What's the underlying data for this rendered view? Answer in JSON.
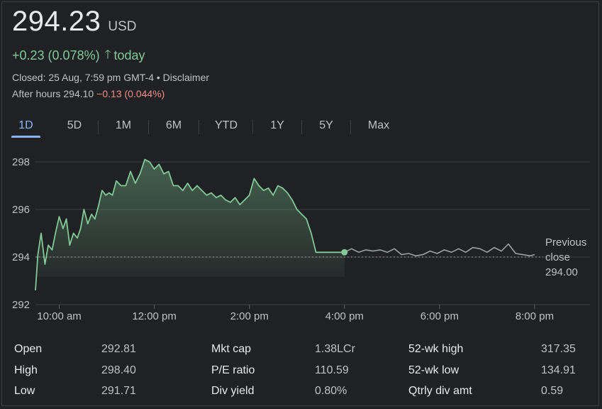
{
  "quote": {
    "price": "294.23",
    "currency": "USD",
    "change": "+0.23 (0.078%)",
    "period": "today",
    "closed_text": "Closed: 25 Aug, 7:59 pm GMT-4 • Disclaimer",
    "after_hours_label": "After hours 294.10",
    "after_hours_change": "−0.13 (0.044%)"
  },
  "tabs": [
    {
      "label": "1D",
      "active": true
    },
    {
      "label": "5D"
    },
    {
      "label": "1M"
    },
    {
      "label": "6M"
    },
    {
      "label": "YTD"
    },
    {
      "label": "1Y"
    },
    {
      "label": "5Y"
    },
    {
      "label": "Max"
    }
  ],
  "colors": {
    "up": "#81c995",
    "down": "#f28b82",
    "accent": "#8ab4f8",
    "after_hours_line": "#9aa0a6"
  },
  "chart_data": {
    "type": "line",
    "yticks": [
      "298",
      "296",
      "294",
      "292"
    ],
    "xticks": [
      "10:00 am",
      "12:00 pm",
      "2:00 pm",
      "4:00 pm",
      "6:00 pm",
      "8:00 pm"
    ],
    "ylim": [
      292,
      298.6
    ],
    "previous_close": 294.0,
    "previous_close_label": [
      "Previous",
      "close",
      "294.00"
    ],
    "x_unit": "hours",
    "x_range": [
      9.5,
      20.0
    ],
    "series": [
      {
        "session": "regular",
        "x": [
          9.5,
          9.55,
          9.62,
          9.7,
          9.77,
          9.85,
          9.92,
          10.0,
          10.08,
          10.15,
          10.22,
          10.3,
          10.38,
          10.45,
          10.52,
          10.6,
          10.68,
          10.75,
          10.82,
          10.9,
          10.98,
          11.05,
          11.12,
          11.2,
          11.3,
          11.4,
          11.5,
          11.6,
          11.7,
          11.8,
          11.9,
          12.0,
          12.1,
          12.2,
          12.3,
          12.4,
          12.5,
          12.6,
          12.7,
          12.8,
          12.9,
          13.0,
          13.1,
          13.2,
          13.3,
          13.4,
          13.5,
          13.6,
          13.7,
          13.8,
          13.9,
          14.0,
          14.1,
          14.2,
          14.3,
          14.4,
          14.5,
          14.6,
          14.7,
          14.8,
          14.9,
          15.0,
          15.1,
          15.2,
          15.3,
          15.4,
          15.5,
          15.6,
          15.7,
          15.8,
          15.9,
          16.0
        ],
        "values": [
          292.6,
          294.1,
          295.0,
          293.7,
          294.5,
          294.3,
          295.0,
          295.7,
          295.2,
          295.6,
          294.5,
          295.0,
          294.8,
          295.2,
          296.0,
          295.4,
          295.8,
          295.6,
          296.1,
          296.8,
          296.6,
          296.7,
          296.6,
          297.2,
          297.0,
          297.0,
          297.6,
          297.1,
          297.5,
          298.1,
          298.0,
          297.7,
          297.9,
          297.5,
          297.6,
          297.0,
          297.0,
          296.8,
          297.1,
          296.8,
          297.0,
          296.8,
          296.6,
          296.7,
          296.5,
          296.6,
          296.4,
          296.3,
          296.5,
          296.2,
          296.4,
          296.6,
          297.3,
          297.0,
          296.8,
          296.9,
          296.6,
          297.0,
          296.9,
          296.7,
          296.4,
          296.0,
          295.8,
          295.6,
          295.0,
          294.2,
          294.2,
          294.2,
          294.2,
          294.2,
          294.2,
          294.2
        ],
        "end_point": {
          "x": 16.0,
          "y": 294.2
        }
      },
      {
        "session": "after-hours",
        "x": [
          16.0,
          16.15,
          16.3,
          16.45,
          16.6,
          16.75,
          16.9,
          17.05,
          17.2,
          17.35,
          17.5,
          17.65,
          17.8,
          17.95,
          18.1,
          18.25,
          18.4,
          18.55,
          18.7,
          18.85,
          19.0,
          19.15,
          19.3,
          19.45,
          19.6,
          19.75,
          19.9,
          20.0
        ],
        "values": [
          294.2,
          294.35,
          294.2,
          294.3,
          294.25,
          294.3,
          294.2,
          294.35,
          294.1,
          294.15,
          294.05,
          294.1,
          294.25,
          294.15,
          294.3,
          294.2,
          294.35,
          294.2,
          294.4,
          294.35,
          294.2,
          294.4,
          294.25,
          294.55,
          294.15,
          294.1,
          294.05,
          294.1
        ]
      }
    ],
    "grid": true
  },
  "stats": [
    {
      "label": "Open",
      "value": "292.81"
    },
    {
      "label": "High",
      "value": "298.40"
    },
    {
      "label": "Low",
      "value": "291.71"
    },
    {
      "label": "Mkt cap",
      "value": "1.38LCr"
    },
    {
      "label": "P/E ratio",
      "value": "110.59"
    },
    {
      "label": "Div yield",
      "value": "0.80%"
    },
    {
      "label": "52-wk high",
      "value": "317.35"
    },
    {
      "label": "52-wk low",
      "value": "134.91"
    },
    {
      "label": "Qtrly div amt",
      "value": "0.59"
    }
  ]
}
